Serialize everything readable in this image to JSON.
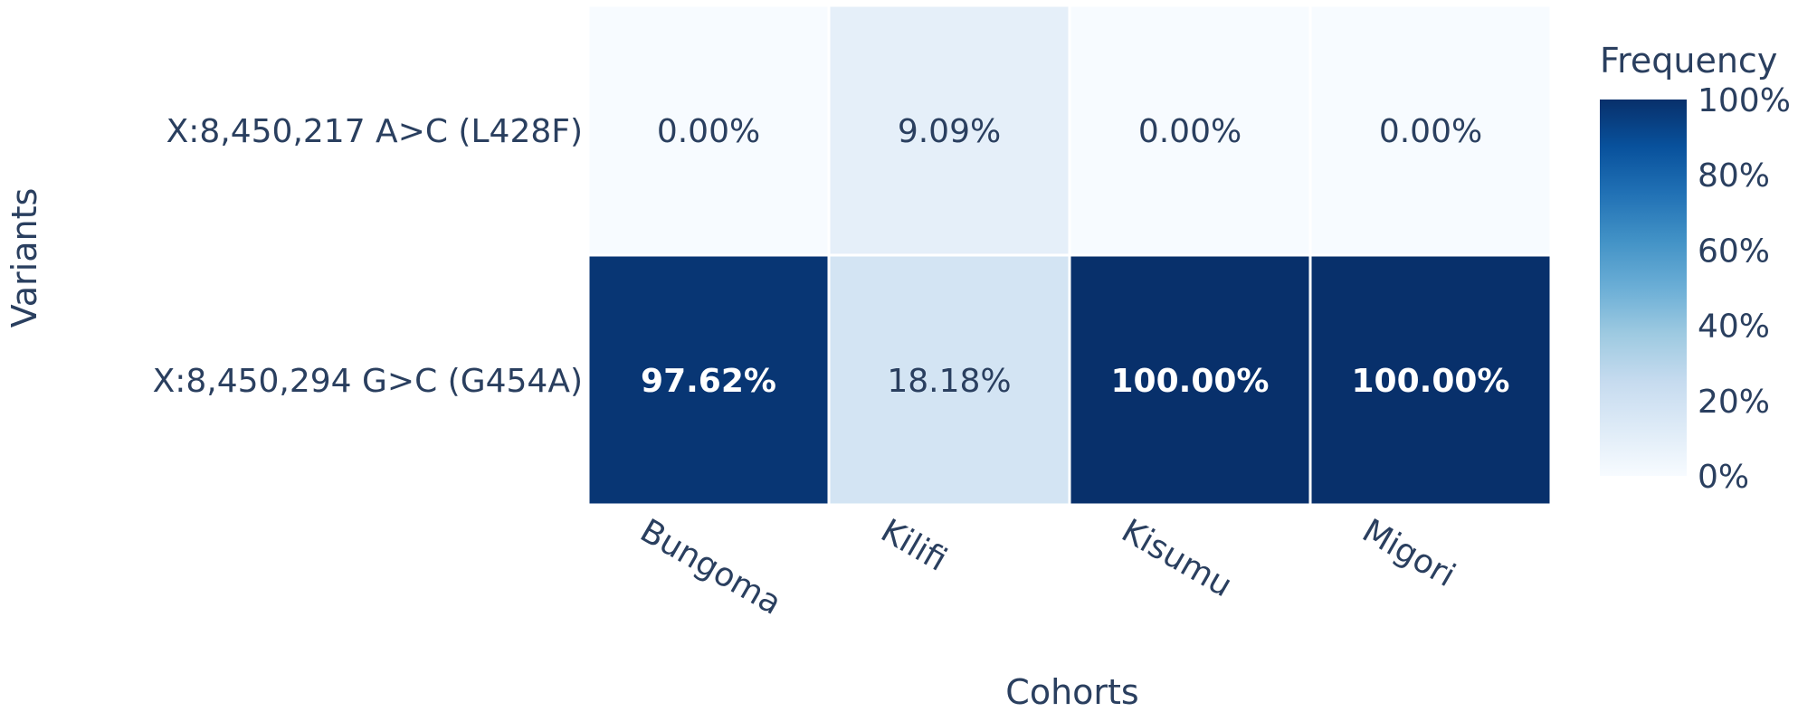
{
  "chart_data": {
    "type": "heatmap",
    "title": "",
    "xlabel": "Cohorts",
    "ylabel": "Variants",
    "x_categories": [
      "Bungoma",
      "Kilifi",
      "Kisumu",
      "Migori"
    ],
    "y_categories": [
      "X:8,450,217 A>C (L428F)",
      "X:8,450,294 G>C (G454A)"
    ],
    "values": [
      [
        0.0,
        9.09,
        0.0,
        0.0
      ],
      [
        97.62,
        18.18,
        100.0,
        100.0
      ]
    ],
    "labels": [
      [
        "0.00%",
        "9.09%",
        "0.00%",
        "0.00%"
      ],
      [
        "97.62%",
        "18.18%",
        "100.00%",
        "100.00%"
      ]
    ],
    "colorbar": {
      "title": "Frequency",
      "range": [
        0,
        100
      ],
      "tick_labels": [
        "0%",
        "20%",
        "40%",
        "60%",
        "80%",
        "100%"
      ],
      "colorscale": "Blues",
      "stops": [
        "#f7fbff",
        "#deebf7",
        "#c6dbef",
        "#9ecae1",
        "#6baed6",
        "#4292c6",
        "#2171b5",
        "#08519c",
        "#08306b"
      ]
    }
  }
}
